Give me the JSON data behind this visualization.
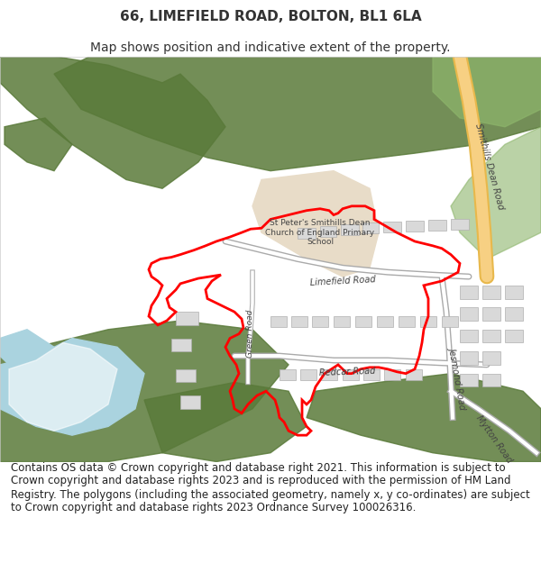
{
  "title_line1": "66, LIMEFIELD ROAD, BOLTON, BL1 6LA",
  "title_line2": "Map shows position and indicative extent of the property.",
  "copyright_text": "Contains OS data © Crown copyright and database right 2021. This information is subject to Crown copyright and database rights 2023 and is reproduced with the permission of HM Land Registry. The polygons (including the associated geometry, namely x, y co-ordinates) are subject to Crown copyright and database rights 2023 Ordnance Survey 100026316.",
  "title_fontsize": 11,
  "subtitle_fontsize": 10,
  "copyright_fontsize": 8.5,
  "fig_width": 6.0,
  "fig_height": 6.25,
  "map_bg_color": "#f5f5f5",
  "green_dark": "#5a7a3a",
  "green_light": "#8db56b",
  "green_park": "#6b9e50",
  "blue_water": "#aad3df",
  "road_yellow": "#f7d083",
  "road_outline": "#e8b84b",
  "building_fill": "#d9d9d9",
  "building_stroke": "#b0b0b0",
  "sand_fill": "#e8dcc8",
  "red_boundary": "#ff0000",
  "white": "#ffffff",
  "border_color": "#cccccc",
  "text_color": "#333333",
  "road_label_color": "#444444"
}
